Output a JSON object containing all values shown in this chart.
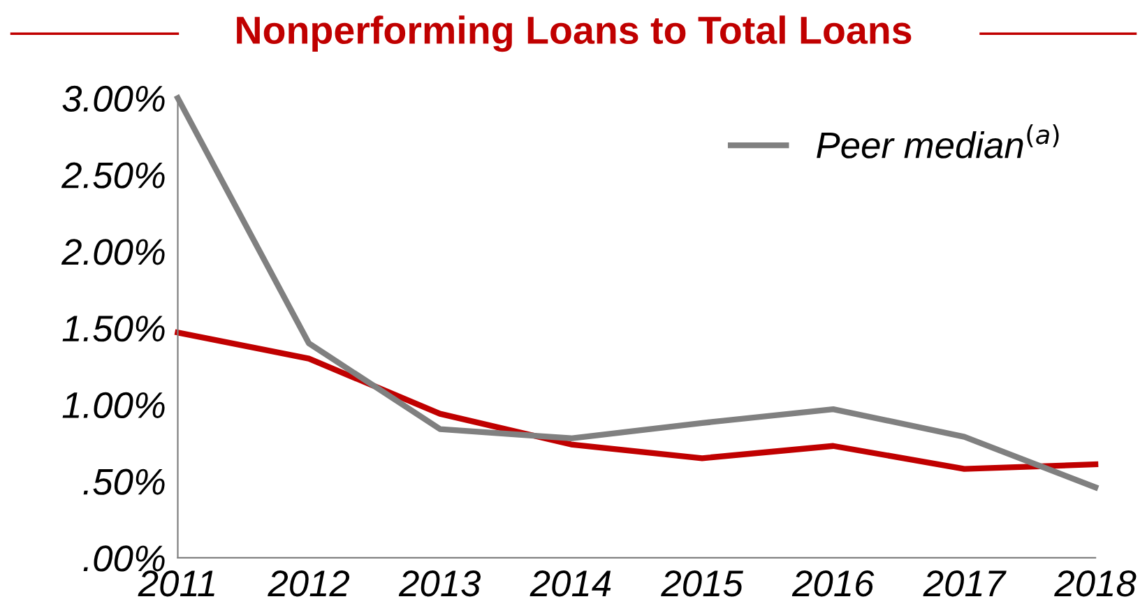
{
  "chart_data": {
    "type": "line",
    "title": "Nonperforming Loans to Total Loans",
    "categories": [
      "2011",
      "2012",
      "2013",
      "2014",
      "2015",
      "2016",
      "2017",
      "2018"
    ],
    "series": [
      {
        "color": "#c00000",
        "values": [
          1.47,
          1.3,
          0.94,
          0.74,
          0.65,
          0.73,
          0.58,
          0.61
        ]
      },
      {
        "name": "Peer median$^{(a)}$",
        "color": "#808080",
        "values": [
          3.0,
          1.4,
          0.84,
          0.78,
          0.88,
          0.97,
          0.79,
          0.46
        ]
      }
    ],
    "ylim": [
      0,
      3.0
    ],
    "yticks": [
      {
        "value": 0,
        "label": ".00%"
      },
      {
        "value": 0.5,
        "label": ".50%"
      },
      {
        "value": 1.0,
        "label": "1.00%"
      },
      {
        "value": 1.5,
        "label": "1.50%"
      },
      {
        "value": 2.0,
        "label": "2.00%"
      },
      {
        "value": 2.5,
        "label": "2.50%"
      },
      {
        "value": 3.0,
        "label": "3.00%"
      }
    ],
    "grid": false,
    "legend": "top right",
    "marker": "none",
    "line_style": "solid"
  }
}
